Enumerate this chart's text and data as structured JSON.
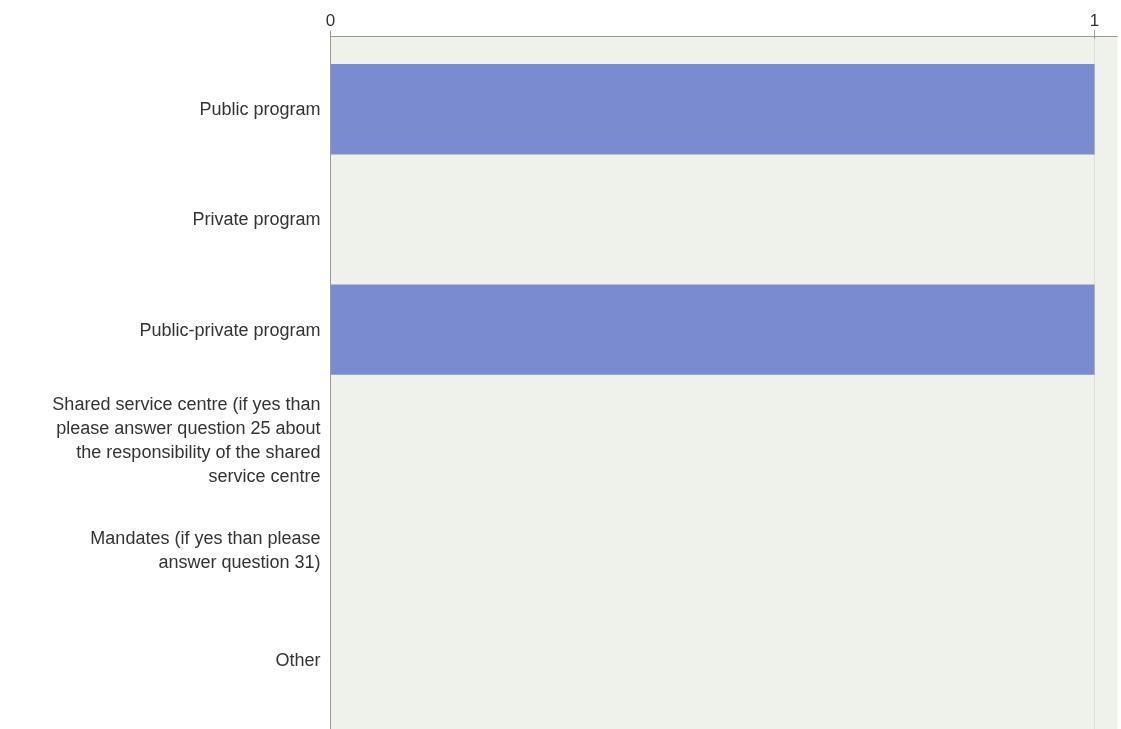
{
  "chart_data": {
    "type": "bar",
    "orientation": "horizontal",
    "categories": [
      "Public program",
      "Private program",
      "Public-private program",
      "Shared service centre (if yes than please answer question 25 about the responsibility of the shared service centre",
      "Mandates (if yes than please answer question 31)",
      "Other"
    ],
    "values": [
      1,
      0,
      1,
      0,
      0,
      0
    ],
    "color": "#7b8bd0",
    "xlim": [
      0,
      1.03
    ],
    "xticks": [
      0,
      1
    ],
    "grid": "x"
  }
}
